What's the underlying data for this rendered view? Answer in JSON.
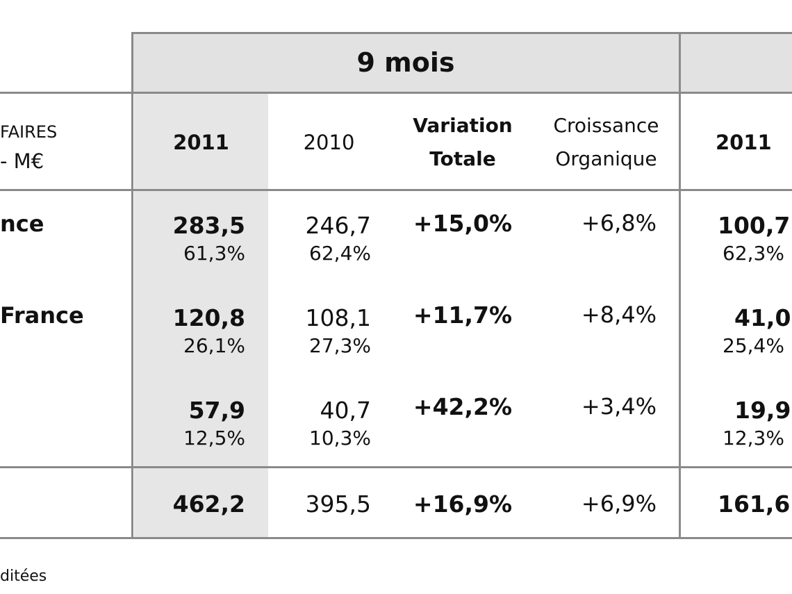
{
  "header": {
    "period_title": "9 mois",
    "left_label_top": "FAIRES",
    "left_label_bottom": "- M€",
    "col_2011": "2011",
    "col_2010": "2010",
    "variation_line1": "Variation",
    "variation_line2": "Totale",
    "croissance_line1": "Croissance",
    "croissance_line2": "Organique",
    "col_2011_right": "2011"
  },
  "rows": [
    {
      "label": "nce",
      "v2011": "283,5",
      "p2011": "61,3%",
      "v2010": "246,7",
      "p2010": "62,4%",
      "variation": "+15,0%",
      "croissance": "+6,8%",
      "right_value": "100,7",
      "right_pct": "62,3%"
    },
    {
      "label": "France",
      "v2011": "120,8",
      "p2011": "26,1%",
      "v2010": "108,1",
      "p2010": "27,3%",
      "variation": "+11,7%",
      "croissance": "+8,4%",
      "right_value": "41,0",
      "right_pct": "25,4%"
    },
    {
      "label": "",
      "v2011": "57,9",
      "p2011": "12,5%",
      "v2010": "40,7",
      "p2010": "10,3%",
      "variation": "+42,2%",
      "croissance": "+3,4%",
      "right_value": "19,9",
      "right_pct": "12,3%"
    }
  ],
  "total": {
    "v2011": "462,2",
    "v2010": "395,5",
    "variation": "+16,9%",
    "croissance": "+6,9%",
    "right_value": "161,6"
  },
  "footnote": "ditées"
}
